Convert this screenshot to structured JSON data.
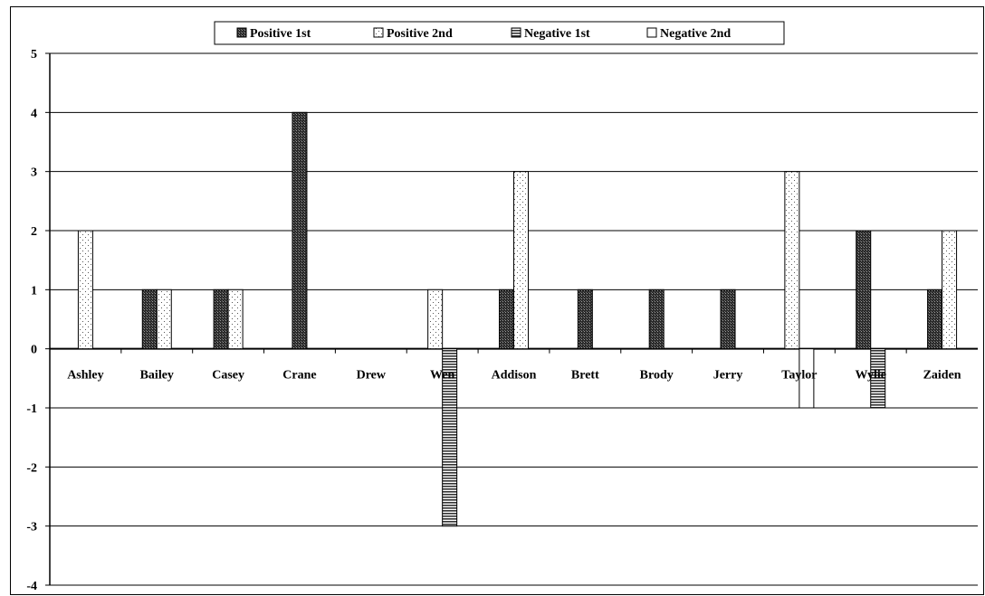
{
  "chart_data": {
    "type": "bar",
    "categories": [
      "Ashley",
      "Bailey",
      "Casey",
      "Crane",
      "Drew",
      "Wen",
      "Addison",
      "Brett",
      "Brody",
      "Jerry",
      "Taylor",
      "Wylie",
      "Zaiden"
    ],
    "series": [
      {
        "name": "Positive 1st",
        "values": [
          0,
          1,
          1,
          4,
          0,
          0,
          1,
          1,
          1,
          1,
          0,
          2,
          1
        ],
        "pattern": "dark-crosshatch"
      },
      {
        "name": "Positive 2nd",
        "values": [
          2,
          1,
          1,
          0,
          0,
          1,
          3,
          0,
          0,
          0,
          3,
          0,
          2
        ],
        "pattern": "light-dots"
      },
      {
        "name": "Negative 1st",
        "values": [
          0,
          0,
          0,
          0,
          0,
          -3,
          0,
          0,
          0,
          0,
          0,
          -1,
          0
        ],
        "pattern": "horizontal-lines"
      },
      {
        "name": "Negative 2nd",
        "values": [
          0,
          0,
          0,
          0,
          0,
          0,
          0,
          0,
          0,
          0,
          -1,
          0,
          0
        ],
        "pattern": "white"
      }
    ],
    "title": "",
    "xlabel": "",
    "ylabel": "",
    "ylim": [
      -4,
      5
    ],
    "yticks": [
      "5",
      "4",
      "3",
      "2",
      "1",
      "0",
      "-1",
      "-2",
      "-3",
      "-4"
    ],
    "grid": true,
    "legend_position": "top-center"
  }
}
